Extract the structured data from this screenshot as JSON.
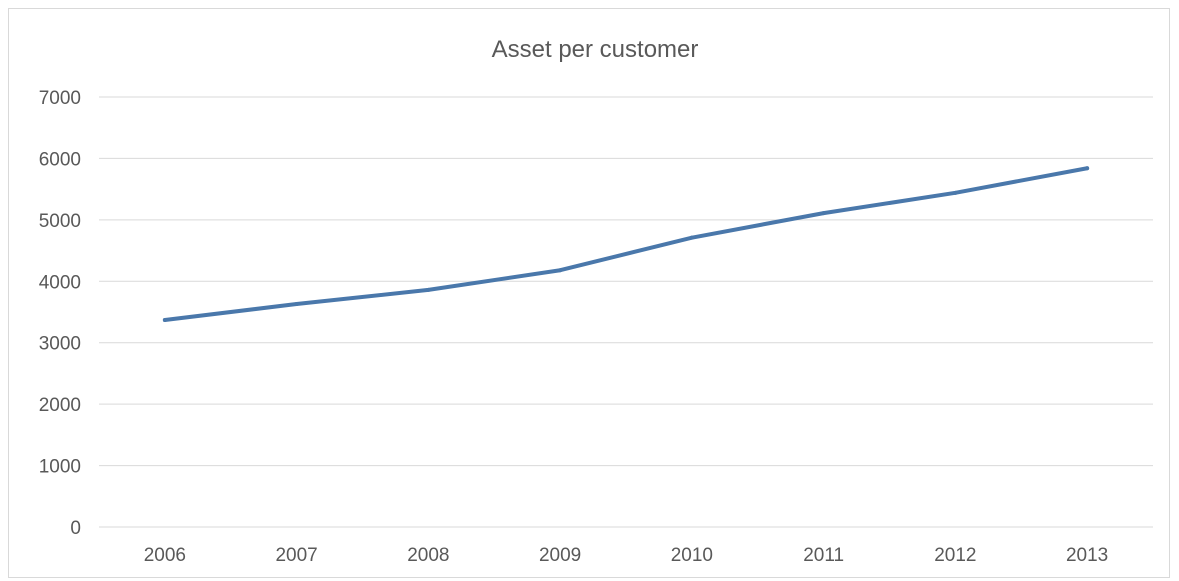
{
  "chart_data": {
    "type": "line",
    "title": "Asset per customer",
    "xlabel": "",
    "ylabel": "",
    "categories": [
      "2006",
      "2007",
      "2008",
      "2009",
      "2010",
      "2011",
      "2012",
      "2013"
    ],
    "series": [
      {
        "values": [
          3370,
          3630,
          3860,
          4180,
          4710,
          5110,
          5440,
          5840
        ],
        "color": "#4a78ab"
      }
    ],
    "ylim": [
      0,
      7000
    ],
    "yticks": [
      0,
      1000,
      2000,
      3000,
      4000,
      5000,
      6000,
      7000
    ],
    "grid": true,
    "legend": "none"
  }
}
